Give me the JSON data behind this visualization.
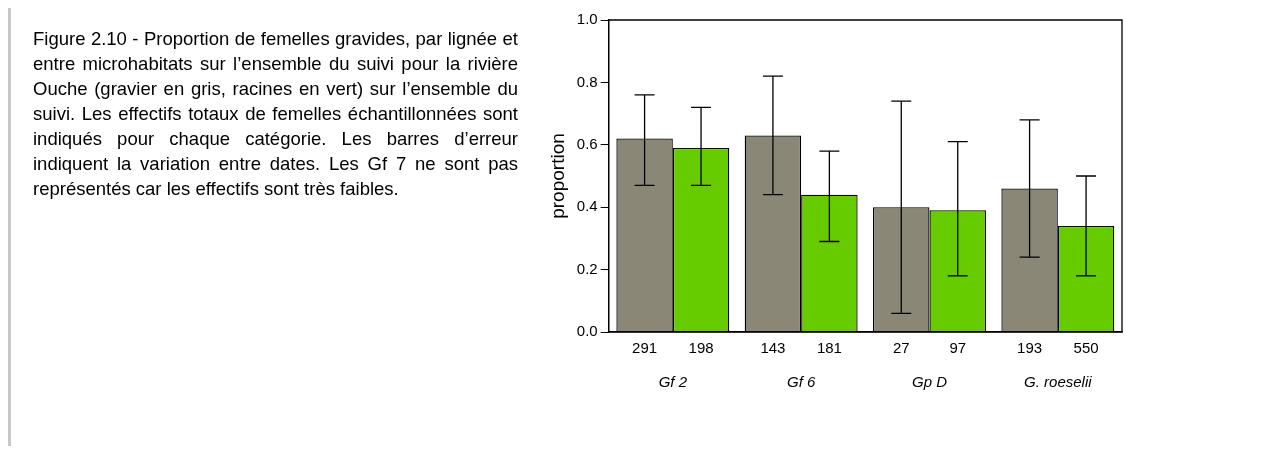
{
  "chart_data": {
    "type": "bar",
    "ylabel": "proportion",
    "categories": [
      "Gf 2",
      "Gf 6",
      "Gp D",
      "G. roeselii"
    ],
    "series": [
      {
        "color": "#8b8777",
        "values": [
          0.62,
          0.63,
          0.4,
          0.46
        ],
        "errors": [
          [
            0.47,
            0.76
          ],
          [
            0.44,
            0.82
          ],
          [
            0.06,
            0.74
          ],
          [
            0.24,
            0.68
          ]
        ]
      },
      {
        "color": "#66cc00",
        "values": [
          0.59,
          0.44,
          0.39,
          0.34
        ],
        "errors": [
          [
            0.47,
            0.72
          ],
          [
            0.29,
            0.58
          ],
          [
            0.18,
            0.61
          ],
          [
            0.18,
            0.5
          ]
        ]
      }
    ],
    "ylim": [
      0,
      1
    ],
    "yticks": [
      {
        "value": 0,
        "label": "0.0"
      },
      {
        "value": 0.2,
        "label": "0.2"
      },
      {
        "value": 0.4,
        "label": "0.4"
      },
      {
        "value": 0.6,
        "label": "0.6"
      },
      {
        "value": 0.8,
        "label": "0.8"
      },
      {
        "value": 1,
        "label": "1.0"
      }
    ],
    "grid": false,
    "legend": false,
    "annotations": [
      "Figure 2.10 - Proportion de femelles gravides, par lignée et entre microhabitats sur l’ensemble du suivi pour la rivière Ouche (gravier en gris, racines en vert) sur l’ensemble du suivi. Les effectifs totaux de femelles échantillonnées sont indiqués pour chaque catégorie. Les barres d’erreur indiquent la variation entre dates. Les Gf 7 ne sont pas représentés car les effectifs sont très faibles.",
      "291",
      "198",
      "143",
      "181",
      "27",
      "97",
      "193",
      "550"
    ]
  }
}
